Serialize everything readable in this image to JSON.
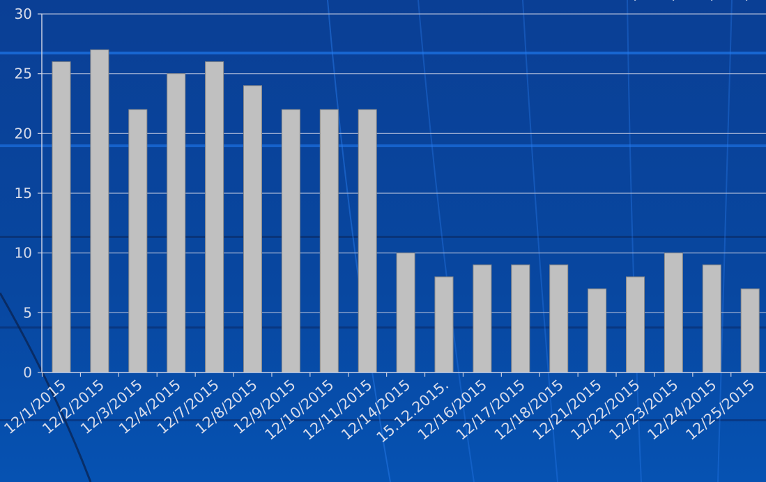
{
  "chart_data": {
    "type": "bar",
    "title": "",
    "xlabel": "",
    "ylabel": "",
    "categories": [
      "12/1/2015",
      "12/2/2015",
      "12/3/2015",
      "12/4/2015",
      "12/7/2015",
      "12/8/2015",
      "12/9/2015",
      "12/10/2015",
      "12/11/2015",
      "12/14/2015",
      "15.12.2015.",
      "12/16/2015",
      "12/17/2015",
      "12/18/2015",
      "12/21/2015",
      "12/22/2015",
      "12/23/2015",
      "12/24/2015",
      "12/25/2015"
    ],
    "values": [
      26,
      27,
      22,
      25,
      26,
      24,
      22,
      22,
      22,
      10,
      8,
      9,
      9,
      9,
      7,
      8,
      10,
      9,
      7
    ],
    "ylim": [
      0,
      30
    ],
    "yticks": [
      0,
      5,
      10,
      15,
      20,
      25,
      30
    ],
    "grid": true,
    "legend": "none",
    "colors": {
      "bar_fill": "#c0c0c0",
      "bar_stroke": "#8a8a8a",
      "gridline": "#a9b6d6",
      "axis": "#c9d0e4",
      "label": "#d8dcea",
      "background_top": "#0a3f95",
      "background_bottom": "#064aa6"
    }
  }
}
